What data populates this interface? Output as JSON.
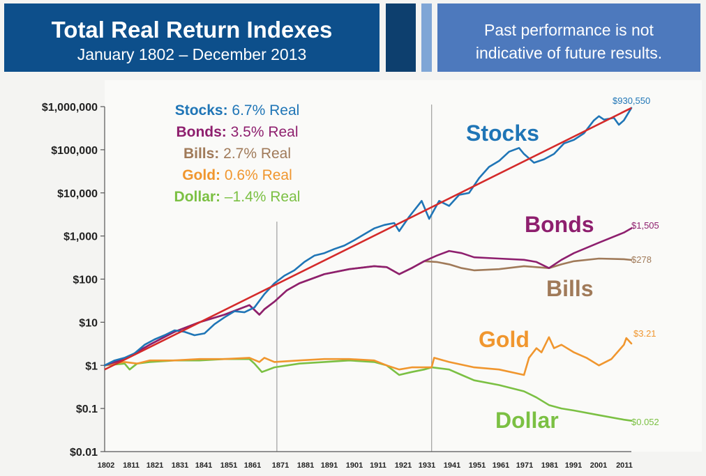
{
  "header": {
    "title": "Total Real Return Indexes",
    "subtitle": "January 1802 – December 2013",
    "note_line1": "Past performance is not",
    "note_line2": "indicative of future results."
  },
  "colors": {
    "title_bg": "#0d4f8b",
    "note_bg": "#4d79bd",
    "stocks": "#1f75b6",
    "bonds": "#8e1f6e",
    "bills": "#a07a59",
    "gold": "#f0962e",
    "dollar": "#7bc043",
    "trend": "#d42a2a"
  },
  "chart_data": {
    "type": "line",
    "y_scale": "log",
    "ylim": [
      0.01,
      1000000
    ],
    "xlim": [
      1802,
      2013
    ],
    "y_ticks": [
      {
        "value": 0.01,
        "label": "$0.01"
      },
      {
        "value": 0.1,
        "label": "$0.1"
      },
      {
        "value": 1,
        "label": "$1"
      },
      {
        "value": 10,
        "label": "$10"
      },
      {
        "value": 100,
        "label": "$100"
      },
      {
        "value": 1000,
        "label": "$1,000"
      },
      {
        "value": 10000,
        "label": "$10,000"
      },
      {
        "value": 100000,
        "label": "$100,000"
      },
      {
        "value": 1000000,
        "label": "$1,000,000"
      }
    ],
    "x_ticks": [
      "1802",
      "1811",
      "1821",
      "1831",
      "1841",
      "1851",
      "1861",
      "1871",
      "1881",
      "1891",
      "1901",
      "1911",
      "1921",
      "1931",
      "1941",
      "1951",
      "1961",
      "1971",
      "1981",
      "1991",
      "2001",
      "2011"
    ],
    "reference_lines": [
      1871,
      1933
    ],
    "legend": [
      {
        "name": "Stocks:",
        "value": "6.7% Real",
        "series": "stocks"
      },
      {
        "name": "Bonds:",
        "value": "3.5% Real",
        "series": "bonds"
      },
      {
        "name": "Bills:",
        "value": "2.7% Real",
        "series": "bills"
      },
      {
        "name": "Gold:",
        "value": "0.6% Real",
        "series": "gold"
      },
      {
        "name": "Dollar:",
        "value": "–1.4% Real",
        "series": "dollar"
      }
    ],
    "series": [
      {
        "id": "stocks",
        "name": "Stocks",
        "end_label": "$930,550",
        "x": [
          1802,
          1806,
          1810,
          1814,
          1818,
          1822,
          1826,
          1830,
          1834,
          1838,
          1842,
          1846,
          1850,
          1854,
          1858,
          1862,
          1866,
          1870,
          1874,
          1878,
          1882,
          1886,
          1890,
          1894,
          1898,
          1902,
          1906,
          1910,
          1914,
          1918,
          1920,
          1924,
          1928,
          1929,
          1932,
          1936,
          1940,
          1944,
          1948,
          1952,
          1956,
          1960,
          1964,
          1968,
          1970,
          1974,
          1978,
          1982,
          1986,
          1990,
          1994,
          1998,
          2000,
          2002,
          2006,
          2008,
          2010,
          2013
        ],
        "values": [
          1,
          1.3,
          1.5,
          1.9,
          3,
          4,
          5,
          6.5,
          6,
          5,
          5.5,
          9,
          13,
          18,
          17,
          22,
          45,
          80,
          120,
          160,
          250,
          350,
          400,
          500,
          600,
          800,
          1100,
          1500,
          1800,
          2000,
          1300,
          2800,
          5500,
          6500,
          2500,
          6500,
          5000,
          9000,
          10000,
          22000,
          40000,
          55000,
          90000,
          110000,
          80000,
          50000,
          60000,
          80000,
          140000,
          170000,
          240000,
          480000,
          600000,
          500000,
          550000,
          380000,
          480000,
          930550
        ]
      },
      {
        "id": "bonds",
        "name": "Bonds",
        "end_label": "$1,505",
        "x": [
          1802,
          1810,
          1820,
          1830,
          1840,
          1850,
          1860,
          1864,
          1866,
          1870,
          1875,
          1880,
          1890,
          1900,
          1910,
          1915,
          1920,
          1925,
          1930,
          1935,
          1940,
          1945,
          1950,
          1960,
          1970,
          1975,
          1980,
          1985,
          1990,
          2000,
          2010,
          2013
        ],
        "values": [
          1,
          1.4,
          3,
          6,
          10,
          15,
          25,
          15,
          20,
          30,
          55,
          80,
          130,
          170,
          200,
          190,
          130,
          180,
          260,
          350,
          450,
          400,
          320,
          300,
          280,
          250,
          180,
          280,
          400,
          700,
          1200,
          1505
        ]
      },
      {
        "id": "bills",
        "name": "Bills",
        "end_label": "$278",
        "x": [
          1802,
          1810,
          1820,
          1830,
          1840,
          1850,
          1860,
          1864,
          1866,
          1870,
          1875,
          1880,
          1890,
          1900,
          1910,
          1915,
          1920,
          1925,
          1930,
          1935,
          1940,
          1945,
          1950,
          1960,
          1970,
          1975,
          1980,
          1985,
          1990,
          2000,
          2010,
          2013
        ],
        "values": [
          1,
          1.4,
          3,
          6,
          10,
          15,
          25,
          15,
          20,
          30,
          55,
          80,
          130,
          170,
          200,
          190,
          130,
          180,
          260,
          250,
          220,
          180,
          160,
          170,
          200,
          190,
          180,
          220,
          260,
          300,
          290,
          278
        ]
      },
      {
        "id": "gold",
        "name": "Gold",
        "end_label": "$3.21",
        "x": [
          1802,
          1810,
          1815,
          1820,
          1830,
          1840,
          1850,
          1860,
          1864,
          1866,
          1870,
          1880,
          1890,
          1900,
          1910,
          1915,
          1920,
          1925,
          1930,
          1933,
          1934,
          1940,
          1950,
          1960,
          1970,
          1972,
          1975,
          1977,
          1980,
          1982,
          1985,
          1990,
          1995,
          2000,
          2005,
          2010,
          2011,
          2013
        ],
        "values": [
          1,
          1.2,
          1.1,
          1.3,
          1.3,
          1.4,
          1.4,
          1.5,
          1.2,
          1.5,
          1.2,
          1.3,
          1.4,
          1.4,
          1.3,
          1.0,
          0.8,
          0.9,
          0.9,
          0.9,
          1.5,
          1.2,
          0.9,
          0.8,
          0.6,
          1.5,
          2.5,
          2.0,
          4.5,
          2.5,
          3.0,
          2.0,
          1.5,
          1.0,
          1.4,
          3.0,
          4.3,
          3.21
        ]
      },
      {
        "id": "dollar",
        "name": "Dollar",
        "end_label": "$0.052",
        "x": [
          1802,
          1810,
          1812,
          1815,
          1820,
          1830,
          1840,
          1850,
          1860,
          1862,
          1865,
          1870,
          1880,
          1890,
          1900,
          1910,
          1915,
          1920,
          1925,
          1930,
          1933,
          1940,
          1945,
          1950,
          1960,
          1970,
          1975,
          1980,
          1985,
          1990,
          2000,
          2010,
          2013
        ],
        "values": [
          1,
          1.1,
          0.8,
          1.1,
          1.2,
          1.3,
          1.3,
          1.4,
          1.4,
          1.1,
          0.7,
          0.9,
          1.1,
          1.2,
          1.3,
          1.2,
          1.0,
          0.6,
          0.7,
          0.8,
          0.9,
          0.8,
          0.6,
          0.45,
          0.35,
          0.25,
          0.18,
          0.12,
          0.1,
          0.09,
          0.07,
          0.055,
          0.052
        ]
      }
    ],
    "trend": {
      "series": "stocks",
      "start": 1,
      "end": 930550
    },
    "series_labels": [
      {
        "text": "Stocks",
        "series": "stocks"
      },
      {
        "text": "Bonds",
        "series": "bonds"
      },
      {
        "text": "Bills",
        "series": "bills"
      },
      {
        "text": "Gold",
        "series": "gold"
      },
      {
        "text": "Dollar",
        "series": "dollar"
      }
    ]
  }
}
